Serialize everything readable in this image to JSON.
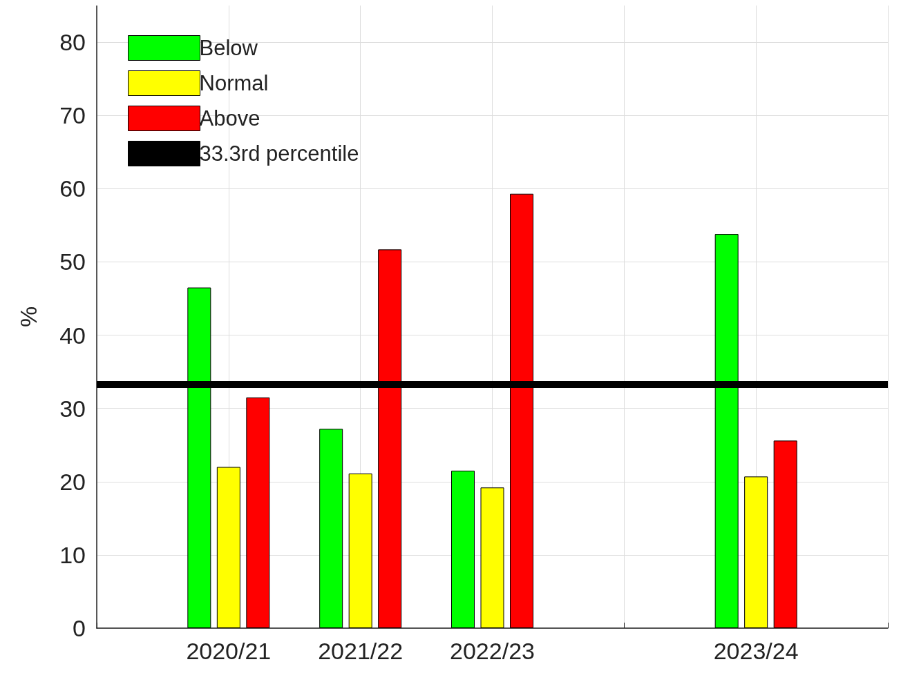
{
  "chart_data": {
    "type": "bar",
    "ylabel": "%",
    "categories": [
      null,
      "2020/21",
      "2021/22",
      "2022/23",
      null,
      "2023/24",
      null
    ],
    "series": [
      {
        "name": "Below",
        "color": "#00ff00",
        "values": [
          null,
          46.5,
          27.2,
          21.5,
          null,
          53.8,
          null
        ]
      },
      {
        "name": "Normal",
        "color": "#ffff00",
        "values": [
          null,
          22.0,
          21.1,
          19.2,
          null,
          20.7,
          null
        ]
      },
      {
        "name": "Above",
        "color": "#ff0000",
        "values": [
          null,
          31.5,
          51.7,
          59.3,
          null,
          25.6,
          null
        ]
      }
    ],
    "ref_lines": [
      {
        "axis": "y",
        "value": 33.3,
        "label": "33.3rd percentile",
        "color": "#000000"
      }
    ],
    "ylim": [
      0,
      85
    ],
    "yticks": [
      0,
      10,
      20,
      30,
      40,
      50,
      60,
      70,
      80
    ],
    "grid": true,
    "legend": "top left"
  }
}
